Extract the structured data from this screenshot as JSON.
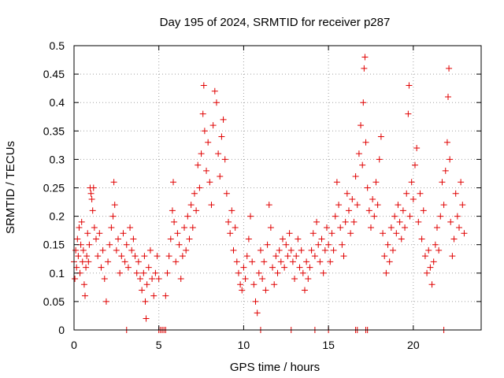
{
  "chart_data": {
    "type": "scatter",
    "title": "Day 195 of 2024, SRMTID for receiver p287",
    "xlabel": "GPS time / hours",
    "ylabel": "SRMTID / TECUs",
    "xlim": [
      0,
      24
    ],
    "ylim": [
      0,
      0.5
    ],
    "xticks": [
      0,
      5,
      10,
      15,
      20
    ],
    "xtick_labels": [
      "0",
      "5",
      "10",
      "15",
      "20"
    ],
    "yticks": [
      0,
      0.05,
      0.1,
      0.15,
      0.2,
      0.25,
      0.3,
      0.35,
      0.4,
      0.45,
      0.5
    ],
    "ytick_labels": [
      "0",
      "0.05",
      "0.1",
      "0.15",
      "0.2",
      "0.25",
      "0.3",
      "0.35",
      "0.4",
      "0.45",
      "0.5"
    ],
    "grid": true,
    "marker": "plus",
    "color": "#e00000",
    "series": [
      {
        "name": "SRMTID",
        "points": [
          [
            0.0,
            0.12
          ],
          [
            0.05,
            0.09
          ],
          [
            0.1,
            0.14
          ],
          [
            0.15,
            0.11
          ],
          [
            0.2,
            0.16
          ],
          [
            0.25,
            0.13
          ],
          [
            0.3,
            0.18
          ],
          [
            0.35,
            0.1
          ],
          [
            0.4,
            0.15
          ],
          [
            0.45,
            0.19
          ],
          [
            0.5,
            0.12
          ],
          [
            0.55,
            0.14
          ],
          [
            0.6,
            0.08
          ],
          [
            0.65,
            0.06
          ],
          [
            0.7,
            0.11
          ],
          [
            0.75,
            0.13
          ],
          [
            0.8,
            0.17
          ],
          [
            0.85,
            0.12
          ],
          [
            0.9,
            0.15
          ],
          [
            0.95,
            0.25
          ],
          [
            1.0,
            0.24
          ],
          [
            1.05,
            0.23
          ],
          [
            1.1,
            0.21
          ],
          [
            1.15,
            0.25
          ],
          [
            1.2,
            0.18
          ],
          [
            1.3,
            0.16
          ],
          [
            1.4,
            0.13
          ],
          [
            1.5,
            0.17
          ],
          [
            1.6,
            0.11
          ],
          [
            1.7,
            0.14
          ],
          [
            1.8,
            0.09
          ],
          [
            1.9,
            0.05
          ],
          [
            2.0,
            0.12
          ],
          [
            2.1,
            0.15
          ],
          [
            2.2,
            0.18
          ],
          [
            2.3,
            0.2
          ],
          [
            2.35,
            0.26
          ],
          [
            2.4,
            0.22
          ],
          [
            2.5,
            0.14
          ],
          [
            2.6,
            0.16
          ],
          [
            2.7,
            0.1
          ],
          [
            2.8,
            0.13
          ],
          [
            2.9,
            0.17
          ],
          [
            3.0,
            0.12
          ],
          [
            3.1,
            0.15
          ],
          [
            3.2,
            0.11
          ],
          [
            3.3,
            0.18
          ],
          [
            3.4,
            0.14
          ],
          [
            3.5,
            0.16
          ],
          [
            3.6,
            0.13
          ],
          [
            3.7,
            0.1
          ],
          [
            3.8,
            0.12
          ],
          [
            3.9,
            0.09
          ],
          [
            4.0,
            0.07
          ],
          [
            4.1,
            0.1
          ],
          [
            4.15,
            0.13
          ],
          [
            4.2,
            0.05
          ],
          [
            4.25,
            0.02
          ],
          [
            4.3,
            0.08
          ],
          [
            4.4,
            0.11
          ],
          [
            4.5,
            0.14
          ],
          [
            4.6,
            0.09
          ],
          [
            4.7,
            0.06
          ],
          [
            4.8,
            0.1
          ],
          [
            4.9,
            0.13
          ],
          [
            5.0,
            0.09
          ],
          [
            5.4,
            0.06
          ],
          [
            5.5,
            0.1
          ],
          [
            5.6,
            0.13
          ],
          [
            5.7,
            0.16
          ],
          [
            5.8,
            0.21
          ],
          [
            5.85,
            0.26
          ],
          [
            5.9,
            0.19
          ],
          [
            6.0,
            0.12
          ],
          [
            6.1,
            0.17
          ],
          [
            6.2,
            0.15
          ],
          [
            6.3,
            0.09
          ],
          [
            6.4,
            0.13
          ],
          [
            6.5,
            0.18
          ],
          [
            6.6,
            0.14
          ],
          [
            6.7,
            0.2
          ],
          [
            6.8,
            0.16
          ],
          [
            6.9,
            0.22
          ],
          [
            7.0,
            0.18
          ],
          [
            7.1,
            0.24
          ],
          [
            7.2,
            0.21
          ],
          [
            7.3,
            0.29
          ],
          [
            7.4,
            0.25
          ],
          [
            7.5,
            0.31
          ],
          [
            7.6,
            0.38
          ],
          [
            7.65,
            0.43
          ],
          [
            7.7,
            0.35
          ],
          [
            7.8,
            0.28
          ],
          [
            7.9,
            0.33
          ],
          [
            8.0,
            0.26
          ],
          [
            8.1,
            0.22
          ],
          [
            8.2,
            0.36
          ],
          [
            8.3,
            0.42
          ],
          [
            8.4,
            0.4
          ],
          [
            8.5,
            0.31
          ],
          [
            8.6,
            0.27
          ],
          [
            8.7,
            0.34
          ],
          [
            8.8,
            0.37
          ],
          [
            8.9,
            0.3
          ],
          [
            9.0,
            0.24
          ],
          [
            9.1,
            0.19
          ],
          [
            9.2,
            0.17
          ],
          [
            9.3,
            0.21
          ],
          [
            9.4,
            0.14
          ],
          [
            9.5,
            0.18
          ],
          [
            9.6,
            0.12
          ],
          [
            9.7,
            0.1
          ],
          [
            9.8,
            0.08
          ],
          [
            9.9,
            0.07
          ],
          [
            10.0,
            0.11
          ],
          [
            10.1,
            0.09
          ],
          [
            10.2,
            0.13
          ],
          [
            10.3,
            0.16
          ],
          [
            10.4,
            0.2
          ],
          [
            10.5,
            0.12
          ],
          [
            10.6,
            0.08
          ],
          [
            10.7,
            0.05
          ],
          [
            10.8,
            0.03
          ],
          [
            10.9,
            0.1
          ],
          [
            11.0,
            0.14
          ],
          [
            11.1,
            0.09
          ],
          [
            11.2,
            0.12
          ],
          [
            11.3,
            0.07
          ],
          [
            11.4,
            0.15
          ],
          [
            11.5,
            0.22
          ],
          [
            11.6,
            0.18
          ],
          [
            11.7,
            0.11
          ],
          [
            11.8,
            0.08
          ],
          [
            11.9,
            0.13
          ],
          [
            12.0,
            0.1
          ],
          [
            12.1,
            0.14
          ],
          [
            12.2,
            0.12
          ],
          [
            12.3,
            0.16
          ],
          [
            12.4,
            0.11
          ],
          [
            12.5,
            0.15
          ],
          [
            12.6,
            0.13
          ],
          [
            12.7,
            0.17
          ],
          [
            12.8,
            0.14
          ],
          [
            12.9,
            0.12
          ],
          [
            13.0,
            0.09
          ],
          [
            13.1,
            0.13
          ],
          [
            13.2,
            0.16
          ],
          [
            13.3,
            0.11
          ],
          [
            13.4,
            0.14
          ],
          [
            13.5,
            0.1
          ],
          [
            13.6,
            0.07
          ],
          [
            13.7,
            0.12
          ],
          [
            13.8,
            0.09
          ],
          [
            13.9,
            0.11
          ],
          [
            14.0,
            0.14
          ],
          [
            14.1,
            0.17
          ],
          [
            14.2,
            0.13
          ],
          [
            14.3,
            0.19
          ],
          [
            14.4,
            0.15
          ],
          [
            14.5,
            0.12
          ],
          [
            14.6,
            0.16
          ],
          [
            14.7,
            0.1
          ],
          [
            14.8,
            0.14
          ],
          [
            14.9,
            0.18
          ],
          [
            15.0,
            0.15
          ],
          [
            15.1,
            0.12
          ],
          [
            15.2,
            0.17
          ],
          [
            15.3,
            0.14
          ],
          [
            15.4,
            0.2
          ],
          [
            15.5,
            0.26
          ],
          [
            15.6,
            0.22
          ],
          [
            15.7,
            0.18
          ],
          [
            15.8,
            0.15
          ],
          [
            15.9,
            0.13
          ],
          [
            16.0,
            0.19
          ],
          [
            16.1,
            0.24
          ],
          [
            16.2,
            0.21
          ],
          [
            16.3,
            0.17
          ],
          [
            16.4,
            0.23
          ],
          [
            16.5,
            0.19
          ],
          [
            16.6,
            0.27
          ],
          [
            16.7,
            0.22
          ],
          [
            16.8,
            0.31
          ],
          [
            16.9,
            0.36
          ],
          [
            17.0,
            0.29
          ],
          [
            17.05,
            0.4
          ],
          [
            17.1,
            0.46
          ],
          [
            17.15,
            0.48
          ],
          [
            17.2,
            0.33
          ],
          [
            17.3,
            0.25
          ],
          [
            17.4,
            0.21
          ],
          [
            17.5,
            0.18
          ],
          [
            17.6,
            0.23
          ],
          [
            17.7,
            0.2
          ],
          [
            17.8,
            0.26
          ],
          [
            17.9,
            0.22
          ],
          [
            18.0,
            0.3
          ],
          [
            18.1,
            0.34
          ],
          [
            18.2,
            0.17
          ],
          [
            18.3,
            0.13
          ],
          [
            18.4,
            0.1
          ],
          [
            18.5,
            0.15
          ],
          [
            18.6,
            0.12
          ],
          [
            18.7,
            0.18
          ],
          [
            18.8,
            0.14
          ],
          [
            18.9,
            0.2
          ],
          [
            19.0,
            0.17
          ],
          [
            19.1,
            0.22
          ],
          [
            19.2,
            0.19
          ],
          [
            19.3,
            0.16
          ],
          [
            19.4,
            0.21
          ],
          [
            19.5,
            0.18
          ],
          [
            19.6,
            0.24
          ],
          [
            19.7,
            0.38
          ],
          [
            19.75,
            0.43
          ],
          [
            19.8,
            0.2
          ],
          [
            19.9,
            0.26
          ],
          [
            20.0,
            0.23
          ],
          [
            20.1,
            0.29
          ],
          [
            20.2,
            0.32
          ],
          [
            20.3,
            0.19
          ],
          [
            20.4,
            0.24
          ],
          [
            20.5,
            0.16
          ],
          [
            20.6,
            0.21
          ],
          [
            20.7,
            0.13
          ],
          [
            20.8,
            0.1
          ],
          [
            20.9,
            0.14
          ],
          [
            21.0,
            0.11
          ],
          [
            21.1,
            0.08
          ],
          [
            21.2,
            0.12
          ],
          [
            21.3,
            0.15
          ],
          [
            21.4,
            0.18
          ],
          [
            21.5,
            0.14
          ],
          [
            21.6,
            0.2
          ],
          [
            21.7,
            0.26
          ],
          [
            21.8,
            0.22
          ],
          [
            21.9,
            0.28
          ],
          [
            22.0,
            0.33
          ],
          [
            22.05,
            0.41
          ],
          [
            22.1,
            0.46
          ],
          [
            22.15,
            0.3
          ],
          [
            22.2,
            0.19
          ],
          [
            22.3,
            0.13
          ],
          [
            22.4,
            0.16
          ],
          [
            22.5,
            0.24
          ],
          [
            22.6,
            0.2
          ],
          [
            22.7,
            0.18
          ],
          [
            22.8,
            0.26
          ],
          [
            22.9,
            0.22
          ],
          [
            23.0,
            0.17
          ],
          [
            3.1,
            0.0
          ],
          [
            5.0,
            0.0
          ],
          [
            5.1,
            0.0
          ],
          [
            5.2,
            0.0
          ],
          [
            5.3,
            0.0
          ],
          [
            5.4,
            0.0
          ],
          [
            11.0,
            0.0
          ],
          [
            12.8,
            0.0
          ],
          [
            14.2,
            0.0
          ],
          [
            15.0,
            0.0
          ],
          [
            16.6,
            0.0
          ],
          [
            16.7,
            0.0
          ],
          [
            17.2,
            0.0
          ],
          [
            17.3,
            0.0
          ],
          [
            21.8,
            0.0
          ]
        ]
      }
    ]
  }
}
